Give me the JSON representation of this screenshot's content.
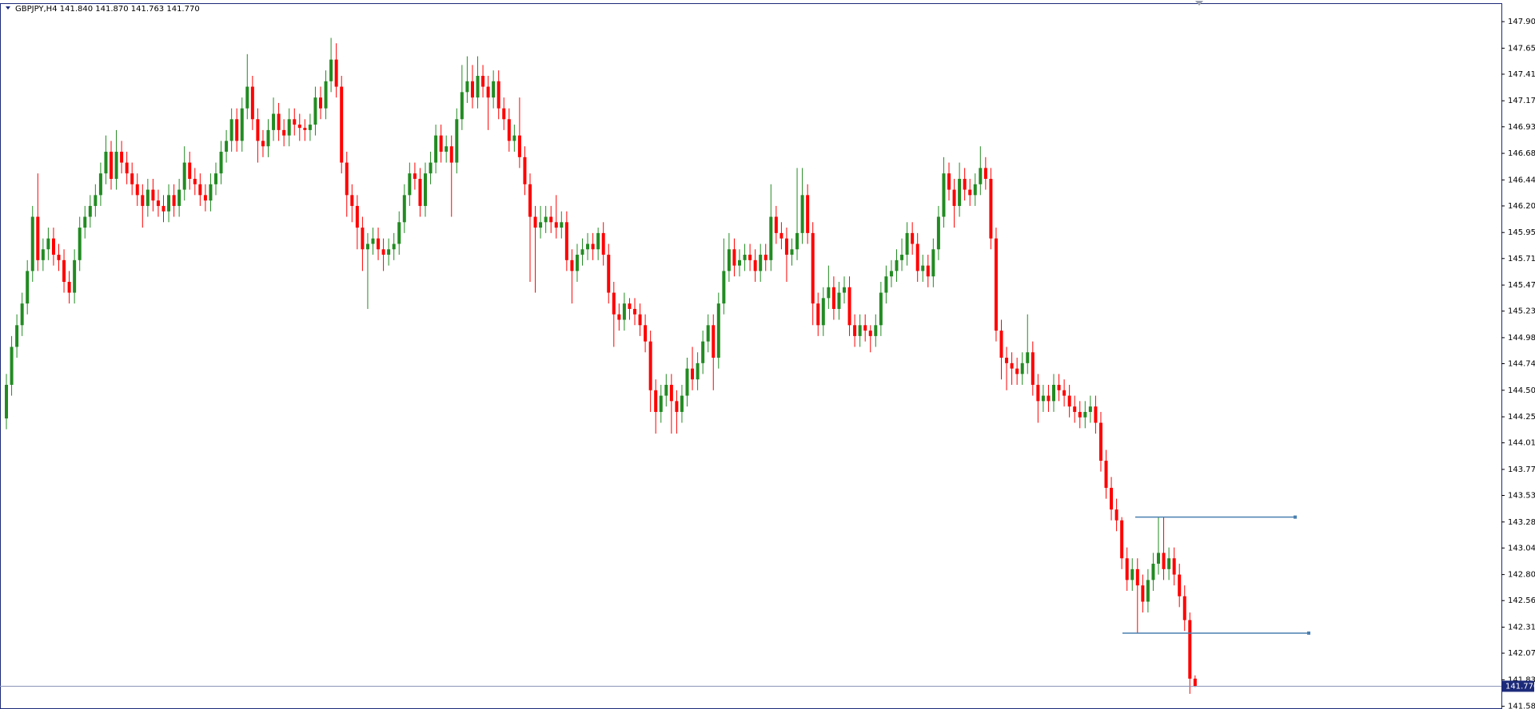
{
  "chart_data": {
    "type": "candlestick",
    "title": "GBPJPY,H4  141.840 141.870 141.763 141.770",
    "up_color": "#228b22",
    "down_color": "#ff0000",
    "level_color": "#4a7fb0",
    "price_line_color": "#8a94b8",
    "ylim": [
      141.56,
      148.07
    ],
    "yticks": [
      {
        "value": 147.9,
        "label": "147.900"
      },
      147.655,
      147.415,
      {
        "value": 147.17,
        "label": "147.170"
      },
      {
        "value": 146.93,
        "label": "146.930"
      },
      146.685,
      {
        "value": 146.44,
        "label": "146.440"
      },
      {
        "value": 146.2,
        "label": "146.200"
      },
      145.955,
      145.715,
      {
        "value": 145.47,
        "label": "145.470"
      },
      {
        "value": 145.23,
        "label": "145.230"
      },
      144.985,
      144.745,
      {
        "value": 144.5,
        "label": "144.500"
      },
      144.255,
      144.015,
      {
        "value": 143.77,
        "label": "143.770"
      },
      {
        "value": 143.53,
        "label": "143.530"
      },
      143.285,
      143.045,
      {
        "value": 142.8,
        "label": "142.800"
      },
      {
        "value": 142.56,
        "label": "142.560"
      },
      142.315,
      142.075,
      {
        "value": 141.83,
        "label": "141.830"
      },
      141.585
    ],
    "last_price": {
      "value": 141.77,
      "label": "141.770"
    },
    "levels": [
      143.33,
      142.26
    ],
    "open": [
      144.24,
      144.55,
      144.9,
      145.1,
      145.3,
      145.6,
      146.1,
      145.7,
      145.8,
      145.9,
      145.75,
      145.7,
      145.5,
      145.4,
      145.7,
      146.0,
      146.1,
      146.2,
      146.3,
      146.5,
      146.7,
      146.45,
      146.7,
      146.6,
      146.5,
      146.4,
      146.3,
      146.2,
      146.35,
      146.25,
      146.2,
      146.15,
      146.3,
      146.2,
      146.35,
      146.6,
      146.45,
      146.4,
      146.3,
      146.25,
      146.4,
      146.5,
      146.7,
      146.8,
      147.0,
      146.8,
      147.1,
      147.3,
      147.0,
      146.8,
      146.75,
      146.9,
      147.05,
      146.9,
      146.85,
      147.0,
      146.95,
      146.92,
      146.9,
      146.95,
      147.2,
      147.1,
      147.35,
      147.55,
      147.3,
      146.6,
      146.3,
      146.2,
      146.0,
      145.8,
      145.85,
      145.9,
      145.8,
      145.75,
      145.8,
      145.85,
      146.05,
      146.3,
      146.5,
      146.45,
      146.2,
      146.5,
      146.6,
      146.85,
      146.7,
      146.75,
      146.6,
      147.0,
      147.25,
      147.35,
      147.2,
      147.4,
      147.3,
      147.2,
      147.35,
      147.1,
      147.0,
      146.8,
      146.85,
      146.65,
      146.4,
      146.1,
      146.0,
      146.05,
      146.1,
      146.05,
      146.0,
      146.05,
      145.7,
      145.6,
      145.75,
      145.8,
      145.85,
      145.8,
      145.95,
      145.75,
      145.4,
      145.2,
      145.15,
      145.3,
      145.25,
      145.2,
      145.1,
      144.95,
      144.5,
      144.3,
      144.45,
      144.55,
      144.4,
      144.3,
      144.45,
      144.7,
      144.6,
      144.75,
      144.95,
      145.1,
      144.8,
      145.3,
      145.6,
      145.8,
      145.65,
      145.7,
      145.75,
      145.7,
      145.6,
      145.75,
      145.7,
      146.1,
      145.95,
      145.9,
      145.75,
      145.8,
      145.95,
      146.3,
      145.95,
      145.3,
      145.1,
      145.35,
      145.45,
      145.25,
      145.4,
      145.45,
      145.1,
      145.0,
      145.1,
      145.05,
      145.0,
      145.1,
      145.4,
      145.55,
      145.6,
      145.7,
      145.75,
      145.95,
      145.85,
      145.6,
      145.65,
      145.55,
      145.8,
      146.1,
      146.5,
      146.35,
      146.2,
      146.45,
      146.35,
      146.3,
      146.4,
      146.55,
      146.45,
      145.9,
      145.05,
      144.8,
      144.75,
      144.7,
      144.65,
      144.75,
      144.85,
      144.55,
      144.4,
      144.45,
      144.4,
      144.55,
      144.5,
      144.45,
      144.35,
      144.3,
      144.25,
      144.3,
      144.35,
      144.2,
      143.85,
      143.6,
      143.4,
      143.3,
      142.95,
      142.75,
      142.85,
      142.7,
      142.55,
      142.75,
      142.9,
      143.0,
      142.85,
      142.95,
      142.8,
      142.6,
      142.38,
      141.84
    ],
    "high": [
      144.65,
      145.0,
      145.2,
      145.4,
      145.7,
      146.2,
      146.5,
      145.9,
      146.0,
      146.0,
      145.85,
      145.8,
      145.6,
      145.8,
      146.1,
      146.2,
      146.3,
      146.4,
      146.6,
      146.85,
      146.8,
      146.9,
      146.8,
      146.7,
      146.6,
      146.5,
      146.4,
      146.45,
      146.45,
      146.35,
      146.3,
      146.4,
      146.4,
      146.45,
      146.75,
      146.7,
      146.55,
      146.5,
      146.4,
      146.5,
      146.6,
      146.8,
      146.9,
      147.1,
      147.1,
      147.2,
      147.6,
      147.4,
      147.1,
      146.9,
      147.0,
      147.2,
      147.15,
      147.0,
      147.1,
      147.1,
      147.05,
      147.0,
      147.05,
      147.3,
      147.3,
      147.45,
      147.75,
      147.7,
      147.4,
      146.7,
      146.4,
      146.3,
      146.1,
      145.95,
      146.0,
      146.0,
      145.9,
      145.9,
      145.95,
      146.15,
      146.4,
      146.6,
      146.6,
      146.55,
      146.6,
      146.7,
      146.95,
      146.95,
      146.85,
      146.85,
      147.1,
      147.5,
      147.58,
      147.5,
      147.58,
      147.5,
      147.4,
      147.45,
      147.45,
      147.2,
      147.1,
      146.95,
      147.2,
      146.75,
      146.5,
      146.2,
      146.2,
      146.2,
      146.2,
      146.3,
      146.15,
      146.15,
      145.8,
      145.85,
      145.9,
      145.95,
      145.95,
      146.0,
      146.05,
      145.85,
      145.5,
      145.3,
      145.4,
      145.35,
      145.35,
      145.3,
      145.2,
      145.05,
      144.6,
      144.55,
      144.65,
      144.65,
      144.5,
      144.55,
      144.8,
      144.9,
      144.85,
      145.05,
      145.2,
      145.2,
      145.4,
      145.9,
      145.95,
      145.9,
      145.8,
      145.85,
      145.85,
      145.8,
      145.85,
      145.85,
      146.4,
      146.2,
      146.05,
      146.0,
      145.9,
      146.55,
      146.55,
      146.4,
      146.05,
      145.4,
      145.45,
      145.65,
      145.55,
      145.5,
      145.55,
      145.55,
      145.2,
      145.2,
      145.2,
      145.1,
      145.2,
      145.5,
      145.65,
      145.7,
      145.8,
      145.9,
      146.05,
      146.05,
      145.95,
      145.75,
      145.75,
      145.9,
      146.2,
      146.65,
      146.6,
      146.45,
      146.6,
      146.55,
      146.45,
      146.5,
      146.75,
      146.65,
      146.55,
      146.0,
      145.15,
      144.9,
      144.85,
      144.8,
      144.85,
      145.2,
      144.95,
      144.65,
      144.55,
      144.55,
      144.65,
      144.65,
      144.6,
      144.55,
      144.45,
      144.4,
      144.4,
      144.45,
      144.45,
      144.3,
      143.95,
      143.7,
      143.5,
      143.33,
      143.05,
      142.95,
      142.95,
      142.8,
      142.85,
      143.0,
      143.33,
      143.33,
      143.05,
      143.05,
      142.9,
      142.7,
      142.45,
      141.87
    ],
    "low": [
      144.14,
      144.45,
      144.8,
      145.0,
      145.2,
      145.5,
      145.6,
      145.6,
      145.7,
      145.65,
      145.6,
      145.4,
      145.3,
      145.3,
      145.6,
      145.9,
      146.0,
      146.1,
      146.2,
      146.4,
      146.35,
      146.35,
      146.5,
      146.4,
      146.3,
      146.2,
      146.0,
      146.1,
      146.15,
      146.1,
      146.05,
      146.05,
      146.1,
      146.1,
      146.25,
      146.35,
      146.3,
      146.2,
      146.15,
      146.15,
      146.3,
      146.4,
      146.6,
      146.7,
      146.7,
      146.7,
      147.0,
      146.9,
      146.6,
      146.65,
      146.65,
      146.8,
      146.8,
      146.75,
      146.75,
      146.85,
      146.8,
      146.8,
      146.8,
      146.85,
      147.0,
      147.0,
      147.25,
      147.2,
      146.5,
      146.1,
      146.05,
      145.8,
      145.6,
      145.25,
      145.75,
      145.7,
      145.6,
      145.65,
      145.7,
      145.75,
      145.95,
      146.2,
      146.35,
      146.1,
      146.1,
      146.4,
      146.5,
      146.6,
      146.6,
      146.1,
      146.5,
      146.9,
      147.15,
      147.1,
      147.1,
      147.2,
      146.9,
      147.1,
      147.0,
      146.9,
      146.7,
      146.7,
      146.55,
      146.3,
      145.5,
      145.4,
      145.9,
      145.95,
      145.95,
      145.9,
      145.9,
      145.6,
      145.3,
      145.5,
      145.65,
      145.7,
      145.7,
      145.7,
      145.65,
      145.3,
      144.9,
      145.05,
      145.05,
      145.15,
      145.1,
      145.0,
      144.85,
      144.3,
      144.1,
      144.2,
      144.35,
      144.1,
      144.1,
      144.2,
      144.35,
      144.5,
      144.5,
      144.65,
      144.85,
      144.5,
      144.7,
      145.2,
      145.5,
      145.55,
      145.55,
      145.6,
      145.6,
      145.5,
      145.5,
      145.6,
      145.6,
      145.85,
      145.8,
      145.5,
      145.65,
      145.7,
      145.85,
      145.85,
      145.1,
      145.0,
      145.0,
      145.25,
      145.15,
      145.15,
      145.3,
      145.0,
      144.9,
      144.9,
      144.95,
      144.85,
      144.9,
      145.0,
      145.3,
      145.45,
      145.5,
      145.6,
      145.65,
      145.75,
      145.5,
      145.5,
      145.45,
      145.45,
      145.7,
      146.0,
      146.25,
      146.0,
      146.1,
      146.25,
      146.2,
      146.2,
      146.3,
      146.35,
      145.8,
      144.95,
      144.6,
      144.5,
      144.55,
      144.55,
      144.55,
      144.65,
      144.45,
      144.2,
      144.3,
      144.3,
      144.3,
      144.4,
      144.35,
      144.25,
      144.2,
      144.15,
      144.15,
      144.2,
      144.1,
      143.75,
      143.5,
      143.3,
      143.2,
      142.85,
      142.65,
      142.65,
      142.26,
      142.45,
      142.45,
      142.65,
      142.8,
      142.75,
      142.75,
      142.7,
      142.5,
      142.28,
      141.7,
      141.763
    ],
    "close": [
      144.55,
      144.9,
      145.1,
      145.3,
      145.6,
      146.1,
      145.7,
      145.8,
      145.9,
      145.75,
      145.7,
      145.5,
      145.4,
      145.7,
      146.0,
      146.1,
      146.2,
      146.3,
      146.5,
      146.7,
      146.45,
      146.7,
      146.6,
      146.5,
      146.4,
      146.3,
      146.2,
      146.35,
      146.25,
      146.2,
      146.15,
      146.3,
      146.2,
      146.35,
      146.6,
      146.45,
      146.4,
      146.3,
      146.25,
      146.4,
      146.5,
      146.7,
      146.8,
      147.0,
      146.8,
      147.1,
      147.3,
      147.0,
      146.8,
      146.75,
      146.9,
      147.05,
      146.9,
      146.85,
      147.0,
      146.95,
      146.92,
      146.9,
      146.95,
      147.2,
      147.1,
      147.35,
      147.55,
      147.3,
      146.6,
      146.3,
      146.2,
      146.0,
      145.8,
      145.85,
      145.9,
      145.8,
      145.75,
      145.8,
      145.85,
      146.05,
      146.3,
      146.5,
      146.45,
      146.2,
      146.5,
      146.6,
      146.85,
      146.7,
      146.75,
      146.6,
      147.0,
      147.25,
      147.35,
      147.2,
      147.4,
      147.3,
      147.2,
      147.35,
      147.1,
      147.0,
      146.8,
      146.85,
      146.65,
      146.4,
      146.1,
      146.0,
      146.05,
      146.1,
      146.05,
      146.0,
      146.05,
      145.7,
      145.6,
      145.75,
      145.8,
      145.85,
      145.8,
      145.95,
      145.75,
      145.4,
      145.2,
      145.15,
      145.3,
      145.25,
      145.2,
      145.1,
      144.95,
      144.5,
      144.3,
      144.45,
      144.55,
      144.4,
      144.3,
      144.45,
      144.7,
      144.6,
      144.75,
      144.95,
      145.1,
      144.8,
      145.3,
      145.6,
      145.8,
      145.65,
      145.7,
      145.75,
      145.7,
      145.6,
      145.75,
      145.7,
      146.1,
      145.95,
      145.9,
      145.75,
      145.8,
      145.95,
      146.3,
      145.95,
      145.3,
      145.1,
      145.35,
      145.45,
      145.25,
      145.4,
      145.45,
      145.1,
      145.0,
      145.1,
      145.05,
      145.0,
      145.1,
      145.4,
      145.55,
      145.6,
      145.7,
      145.75,
      145.95,
      145.85,
      145.6,
      145.65,
      145.55,
      145.8,
      146.1,
      146.5,
      146.35,
      146.2,
      146.45,
      146.35,
      146.3,
      146.4,
      146.55,
      146.45,
      145.9,
      145.05,
      144.8,
      144.75,
      144.7,
      144.65,
      144.75,
      144.85,
      144.55,
      144.4,
      144.45,
      144.4,
      144.55,
      144.5,
      144.45,
      144.35,
      144.3,
      144.25,
      144.3,
      144.35,
      144.2,
      143.85,
      143.6,
      143.4,
      143.3,
      142.95,
      142.75,
      142.85,
      142.7,
      142.55,
      142.75,
      142.9,
      143.0,
      142.85,
      142.95,
      142.8,
      142.6,
      142.38,
      141.84,
      141.77
    ]
  }
}
